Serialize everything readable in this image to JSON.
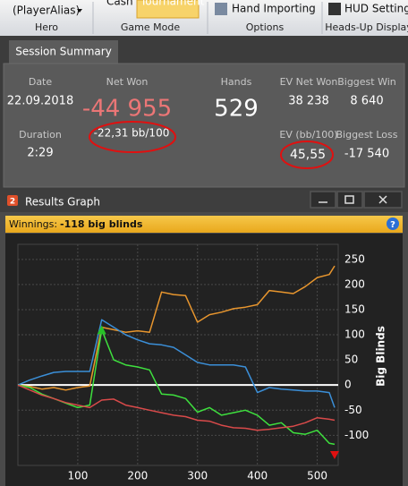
{
  "toolbar": {
    "player": "(PlayerAlias)",
    "buttons": [
      "Cash",
      "Tournament",
      "Hand Importing",
      "HUD Settings"
    ],
    "groups": [
      "Hero",
      "Game Mode",
      "Options",
      "Heads-Up Display"
    ]
  },
  "session_summary": {
    "tab": "Session Summary",
    "date_label": "Date",
    "date": "22.09.2018",
    "duration_label": "Duration",
    "duration": "2:29",
    "net_won_label": "Net Won",
    "net_won": "-44 955",
    "net_won_bb": "-22,31 bb/100",
    "hands_label": "Hands",
    "hands": "529",
    "ev_net_won_label": "EV Net Won",
    "ev_net_won": "38 238",
    "ev_bb_label": "EV (bb/100)",
    "ev_bb": "45,55",
    "biggest_win_label": "Biggest Win",
    "biggest_win": "8 640",
    "biggest_loss_label": "Biggest Loss",
    "biggest_loss": "-17 540"
  },
  "results_graph": {
    "badge": "2",
    "title": "Results Graph",
    "winnings_label": "Winnings:",
    "winnings_value": "-118 big blinds",
    "help": "?"
  },
  "chart_data": {
    "type": "line",
    "y_label": "Big Blinds",
    "x": [
      0,
      20,
      40,
      60,
      80,
      100,
      120,
      140,
      160,
      180,
      200,
      220,
      240,
      260,
      280,
      300,
      320,
      340,
      360,
      380,
      400,
      420,
      440,
      460,
      480,
      500,
      520,
      529
    ],
    "series": [
      {
        "color": "#e8962e",
        "values": [
          0,
          -3,
          -8,
          -5,
          -10,
          -5,
          -2,
          115,
          110,
          105,
          108,
          105,
          185,
          180,
          178,
          125,
          140,
          145,
          152,
          155,
          160,
          188,
          185,
          182,
          196,
          214,
          220,
          237
        ]
      },
      {
        "color": "#3b8fd8",
        "values": [
          0,
          10,
          18,
          25,
          27,
          27,
          27,
          130,
          115,
          100,
          90,
          82,
          80,
          75,
          60,
          45,
          40,
          40,
          40,
          36,
          -15,
          -5,
          -8,
          -10,
          -12,
          -12,
          -15,
          -45
        ]
      },
      {
        "color": "#3ee03e",
        "values": [
          0,
          -5,
          -18,
          -27,
          -36,
          -45,
          -40,
          110,
          50,
          40,
          36,
          30,
          -18,
          -20,
          -27,
          -54,
          -45,
          -60,
          -55,
          -50,
          -60,
          -80,
          -75,
          -95,
          -98,
          -90,
          -116,
          -118
        ]
      },
      {
        "color": "#d94a4a",
        "values": [
          0,
          -10,
          -20,
          -27,
          -35,
          -40,
          -45,
          -30,
          -28,
          -40,
          -45,
          -50,
          -55,
          -60,
          -63,
          -70,
          -72,
          -80,
          -85,
          -86,
          -90,
          -88,
          -85,
          -82,
          -75,
          -65,
          -68,
          -70
        ]
      }
    ],
    "xlim": [
      0,
      535
    ],
    "ylim": [
      -160,
      280
    ],
    "xticks": [
      100,
      200,
      300,
      400,
      500
    ],
    "yticks": [
      -100,
      -50,
      0,
      50,
      100,
      150,
      200,
      250
    ],
    "grid": true
  }
}
